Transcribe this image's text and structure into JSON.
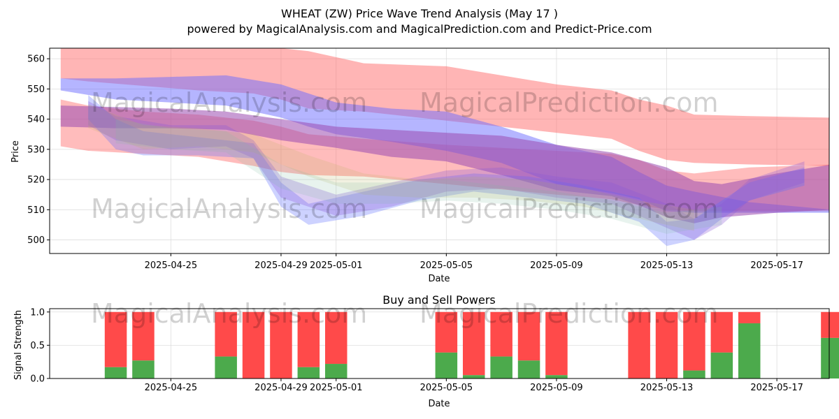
{
  "chart_data": [
    {
      "type": "area",
      "title": "WHEAT (ZW) Price Wave Trend Analysis (May 17 )",
      "subtitle": "powered by MagicalAnalysis.com and MagicalPrediction.com and Predict-Price.com",
      "xlabel": "Date",
      "ylabel": "Price",
      "x_ticks": [
        "2025-04-25",
        "2025-04-29",
        "2025-05-01",
        "2025-05-05",
        "2025-05-09",
        "2025-05-13",
        "2025-05-17"
      ],
      "x_tick_days": [
        4,
        8,
        10,
        14,
        18,
        22,
        26
      ],
      "xlim": [
        -0.4,
        27.9
      ],
      "ylim": [
        495.5,
        563.5
      ],
      "y_ticks": [
        500,
        510,
        520,
        530,
        540,
        550,
        560
      ],
      "grid": true,
      "watermarks": [
        "MagicalAnalysis.com",
        "MagicalPrediction.com",
        "MagicalAnalysis.com",
        "MagicalPrediction.com"
      ],
      "bands": [
        {
          "name": "red-upper",
          "color": "#ff6b6b",
          "opacity": 0.5,
          "x": [
            0,
            1,
            3,
            5,
            7,
            8,
            9,
            11,
            14,
            18,
            20,
            21,
            22,
            23,
            25,
            28
          ],
          "upper": [
            563.5,
            563.5,
            563.5,
            563.5,
            563.5,
            563.5,
            562.5,
            558.5,
            557.5,
            551.5,
            549.5,
            546.5,
            544.5,
            541.5,
            541,
            540.5
          ],
          "lower": [
            553.5,
            552.5,
            551,
            549.5,
            548.5,
            546.5,
            543.5,
            542.5,
            539.5,
            535.5,
            533.5,
            529.5,
            526.5,
            525.5,
            525,
            524.5
          ]
        },
        {
          "name": "red-lower",
          "color": "#ff6b6b",
          "opacity": 0.45,
          "x": [
            0,
            1,
            3,
            5,
            7,
            8,
            9,
            11,
            14,
            18,
            20,
            21,
            22,
            23,
            25,
            28
          ],
          "upper": [
            546.5,
            544.5,
            542.5,
            541.5,
            539.5,
            537.5,
            535,
            533.5,
            531.5,
            529.5,
            528.5,
            526.5,
            523,
            522,
            524,
            525
          ],
          "lower": [
            531,
            529.5,
            528.5,
            527.5,
            524.5,
            522.5,
            521.5,
            521,
            518.5,
            515,
            513.5,
            511.5,
            510,
            509.5,
            509.5,
            509.5
          ]
        },
        {
          "name": "blue-upper",
          "color": "#6b6bff",
          "opacity": 0.5,
          "x": [
            0,
            2,
            4,
            6,
            8,
            9,
            10,
            12,
            14,
            16,
            18,
            20,
            21,
            22,
            23,
            25,
            28
          ],
          "upper": [
            553.5,
            553.5,
            554,
            554.5,
            551.5,
            548.5,
            545.5,
            543.5,
            542.5,
            537.5,
            531.5,
            527.5,
            522.5,
            518,
            516,
            512.5,
            510
          ],
          "lower": [
            549.5,
            546.5,
            545.5,
            544.5,
            540.5,
            537.5,
            535,
            532.5,
            529.5,
            525.5,
            518.5,
            515.5,
            513.5,
            509.5,
            509,
            509,
            509
          ]
        },
        {
          "name": "purple-mid",
          "color": "#9b4ab0",
          "opacity": 0.55,
          "x": [
            0,
            2,
            4,
            6,
            8,
            10,
            12,
            14,
            16,
            18,
            20,
            21,
            22,
            23,
            24,
            26,
            28
          ],
          "upper": [
            544.5,
            544,
            543.5,
            542.5,
            540,
            537.5,
            536.5,
            535.5,
            534.5,
            531.5,
            529,
            526.5,
            524,
            519.5,
            518.5,
            522,
            525
          ],
          "lower": [
            537.5,
            537,
            537,
            536.5,
            533,
            530.5,
            527.5,
            526,
            521.5,
            516.5,
            514.5,
            511.5,
            507.5,
            505.5,
            507.5,
            509,
            510
          ]
        },
        {
          "name": "wave-blue-1",
          "color": "#5b6bff",
          "opacity": 0.3,
          "x": [
            1,
            2,
            3,
            5,
            7,
            8,
            9,
            11,
            13,
            15,
            17,
            19,
            21,
            22,
            23,
            24,
            25,
            27
          ],
          "upper": [
            548,
            540,
            536,
            534,
            532,
            519,
            512,
            516,
            520,
            522,
            521,
            518,
            514,
            506,
            507,
            513,
            519,
            524
          ],
          "lower": [
            540,
            530,
            528,
            528,
            527,
            511,
            505,
            508,
            513,
            516,
            514,
            512,
            506,
            498,
            500,
            507,
            513,
            518
          ]
        },
        {
          "name": "wave-purple-2",
          "color": "#8a5ad8",
          "opacity": 0.3,
          "x": [
            1,
            2,
            4,
            6,
            7,
            8,
            10,
            12,
            14,
            16,
            18,
            20,
            22,
            23,
            24,
            25,
            27
          ],
          "upper": [
            546,
            541,
            538,
            538,
            533,
            521,
            515,
            519,
            523,
            524,
            521,
            519,
            512,
            507,
            512,
            520,
            526
          ],
          "lower": [
            538,
            533,
            530,
            531,
            527,
            514,
            508,
            511,
            516,
            517,
            514,
            512,
            504,
            500,
            505,
            513,
            519
          ]
        },
        {
          "name": "wave-olive-3",
          "color": "#b8b05a",
          "opacity": 0.18,
          "x": [
            1,
            3,
            5,
            7,
            9,
            11,
            13,
            15,
            17,
            19,
            21,
            23
          ],
          "upper": [
            545,
            538,
            537,
            535,
            528,
            522,
            520,
            521,
            520,
            517,
            513,
            510
          ],
          "lower": [
            537,
            530,
            531,
            529,
            521,
            515,
            514,
            514,
            513,
            511,
            507,
            503
          ]
        },
        {
          "name": "wave-green-4",
          "color": "#7fbfa0",
          "opacity": 0.18,
          "x": [
            2,
            4,
            6,
            8,
            10,
            12,
            14,
            16,
            18,
            20,
            22,
            24
          ],
          "upper": [
            540,
            537,
            536,
            525,
            519,
            519,
            520,
            518,
            516,
            513,
            509,
            511
          ],
          "lower": [
            532,
            530,
            529,
            517,
            512,
            512,
            513,
            512,
            510,
            507,
            502,
            505
          ]
        }
      ]
    },
    {
      "type": "bar",
      "title": "Buy and Sell Powers",
      "xlabel": "Date",
      "ylabel": "Signal Strength",
      "x_ticks": [
        "2025-04-25",
        "2025-04-29",
        "2025-05-01",
        "2025-05-05",
        "2025-05-09",
        "2025-05-13",
        "2025-05-17"
      ],
      "x_tick_days": [
        4,
        8,
        10,
        14,
        18,
        22,
        26
      ],
      "xlim": [
        -0.4,
        27.9
      ],
      "ylim": [
        0,
        1.05
      ],
      "y_ticks": [
        0.0,
        0.5,
        1.0
      ],
      "y_tick_labels": [
        "0.0",
        "0.5",
        "1.0"
      ],
      "buy_color": "#4caa4c",
      "sell_color": "#ff4a4a",
      "days": [
        2,
        3,
        6,
        7,
        8,
        9,
        10,
        14,
        15,
        16,
        17,
        18,
        21,
        22,
        23,
        24,
        25,
        28
      ],
      "buy": [
        0.17,
        0.27,
        0.33,
        0.0,
        0.0,
        0.17,
        0.22,
        0.39,
        0.05,
        0.33,
        0.27,
        0.05,
        0.0,
        0.0,
        0.12,
        0.39,
        0.83,
        0.61
      ]
    }
  ]
}
